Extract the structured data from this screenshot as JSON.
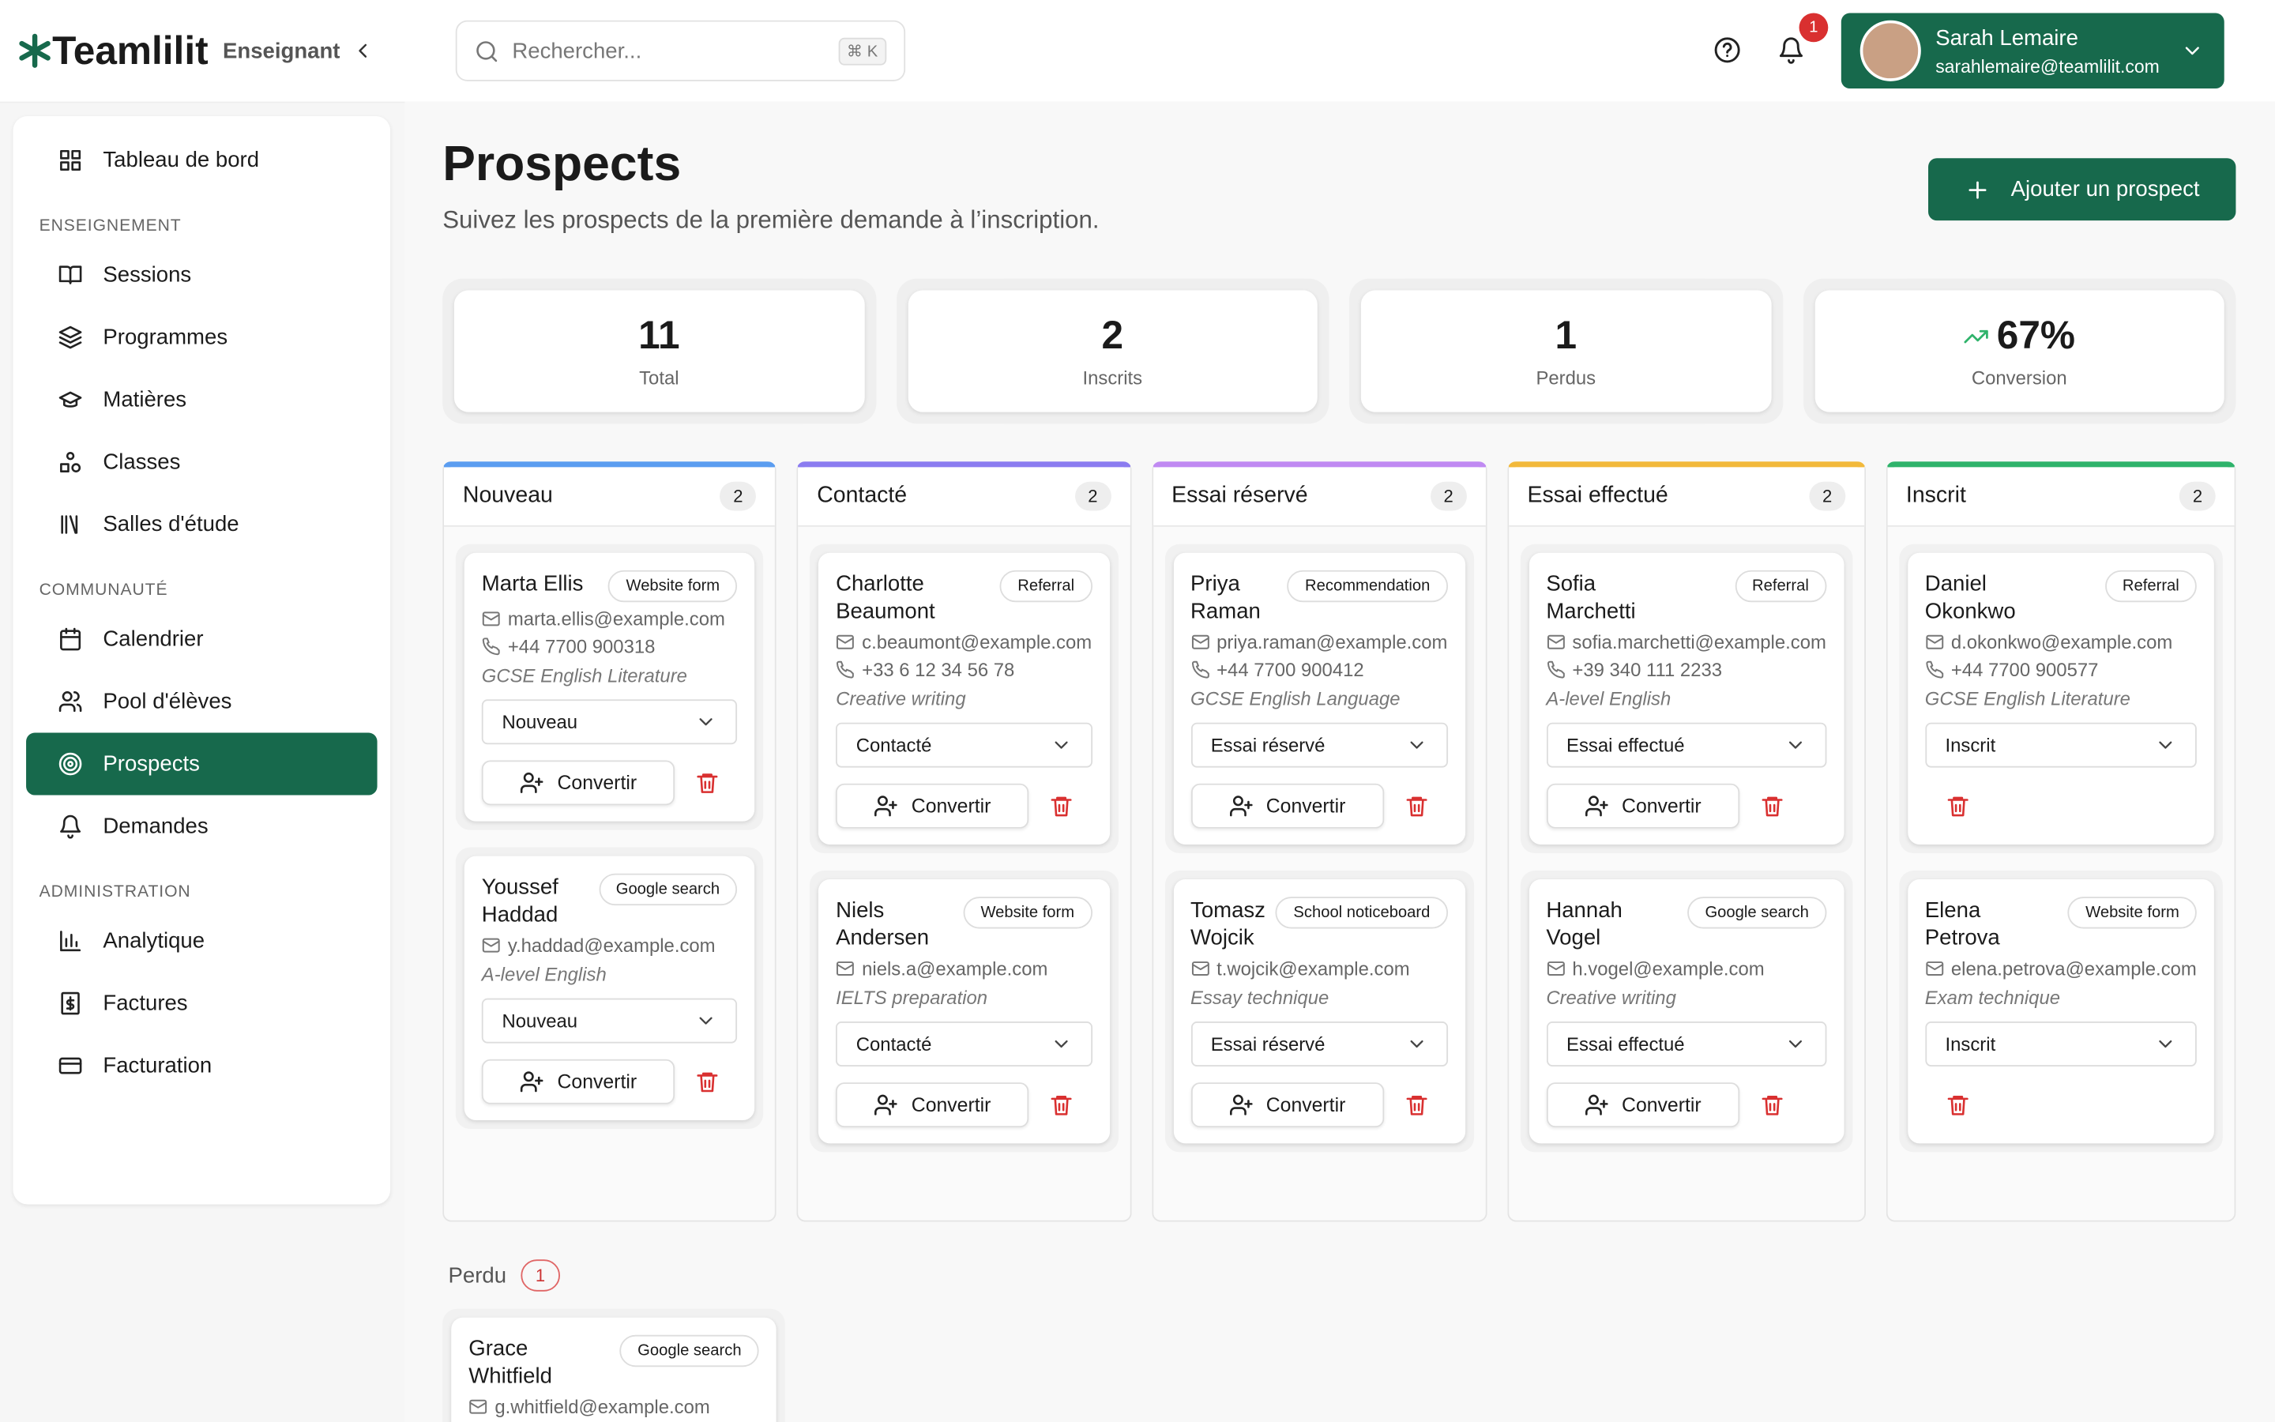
{
  "header": {
    "brand": "Teamlilit",
    "role": "Enseignant",
    "search_placeholder": "Rechercher...",
    "shortcut": "⌘ K",
    "notifications": "1",
    "user_name": "Sarah Lemaire",
    "user_email": "sarahlemaire@teamlilit.com"
  },
  "sidebar": {
    "top": "Tableau de bord",
    "sections": [
      {
        "title": "ENSEIGNEMENT",
        "items": [
          "Sessions",
          "Programmes",
          "Matières",
          "Classes",
          "Salles d'étude"
        ]
      },
      {
        "title": "COMMUNAUTÉ",
        "items": [
          "Calendrier",
          "Pool d'élèves",
          "Prospects",
          "Demandes"
        ]
      },
      {
        "title": "ADMINISTRATION",
        "items": [
          "Analytique",
          "Factures",
          "Facturation"
        ]
      }
    ],
    "active": "Prospects"
  },
  "page": {
    "title": "Prospects",
    "subtitle": "Suivez les prospects de la première demande à l’inscription.",
    "add_button": "Ajouter un prospect",
    "convert": "Convertir"
  },
  "stats": [
    {
      "value": "11",
      "label": "Total"
    },
    {
      "value": "2",
      "label": "Inscrits"
    },
    {
      "value": "1",
      "label": "Perdus"
    },
    {
      "value": "67%",
      "label": "Conversion"
    }
  ],
  "columns": [
    {
      "name": "Nouveau",
      "count": "2",
      "color": "#5b9df0",
      "cards": [
        {
          "name": "Marta Ellis",
          "source": "Website form",
          "email": "marta.ellis@example.com",
          "phone": "+44 7700 900318",
          "subject": "GCSE English Literature",
          "status": "Nouveau"
        },
        {
          "name": "Youssef Haddad",
          "source": "Google search",
          "email": "y.haddad@example.com",
          "subject": "A-level English",
          "status": "Nouveau"
        }
      ]
    },
    {
      "name": "Contacté",
      "count": "2",
      "color": "#8b7cf0",
      "cards": [
        {
          "name": "Charlotte Beaumont",
          "source": "Referral",
          "email": "c.beaumont@example.com",
          "phone": "+33 6 12 34 56 78",
          "subject": "Creative writing",
          "status": "Contacté"
        },
        {
          "name": "Niels Andersen",
          "source": "Website form",
          "email": "niels.a@example.com",
          "subject": "IELTS preparation",
          "status": "Contacté"
        }
      ]
    },
    {
      "name": "Essai réservé",
      "count": "2",
      "color": "#c08af2",
      "cards": [
        {
          "name": "Priya Raman",
          "source": "Recommendation",
          "email": "priya.raman@example.com",
          "phone": "+44 7700 900412",
          "subject": "GCSE English Language",
          "status": "Essai réservé"
        },
        {
          "name": "Tomasz Wojcik",
          "source": "School noticeboard",
          "email": "t.wojcik@example.com",
          "subject": "Essay technique",
          "status": "Essai réservé"
        }
      ]
    },
    {
      "name": "Essai effectué",
      "count": "2",
      "color": "#f2b93b",
      "cards": [
        {
          "name": "Sofia Marchetti",
          "source": "Referral",
          "email": "sofia.marchetti@example.com",
          "phone": "+39 340 111 2233",
          "subject": "A-level English",
          "status": "Essai effectué"
        },
        {
          "name": "Hannah Vogel",
          "source": "Google search",
          "email": "h.vogel@example.com",
          "subject": "Creative writing",
          "status": "Essai effectué"
        }
      ]
    },
    {
      "name": "Inscrit",
      "count": "2",
      "color": "#2fb36b",
      "cards": [
        {
          "name": "Daniel Okonkwo",
          "source": "Referral",
          "email": "d.okonkwo@example.com",
          "phone": "+44 7700 900577",
          "subject": "GCSE English Literature",
          "status": "Inscrit"
        },
        {
          "name": "Elena Petrova",
          "source": "Website form",
          "email": "elena.petrova@example.com",
          "subject": "Exam technique",
          "status": "Inscrit"
        }
      ]
    }
  ],
  "lost": {
    "title": "Perdu",
    "count": "1",
    "cards": [
      {
        "name": "Grace Whitfield",
        "source": "Google search",
        "email": "g.whitfield@example.com"
      }
    ]
  }
}
